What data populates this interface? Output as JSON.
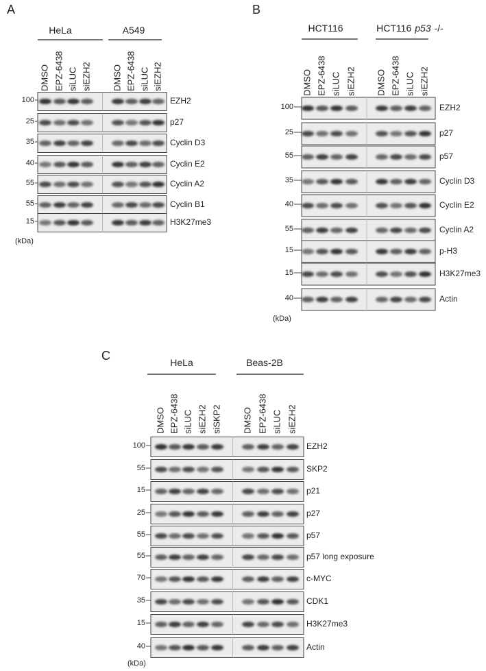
{
  "panels": [
    {
      "label": "A",
      "groups": [
        {
          "name": "HeLa",
          "lanes": [
            "DMSO",
            "EPZ-6438",
            "siLUC",
            "siEZH2"
          ]
        },
        {
          "name": "A549",
          "lanes": [
            "DMSO",
            "EPZ-6438",
            "siLUC",
            "siEZH2"
          ]
        }
      ],
      "rows": [
        {
          "mw": "100",
          "protein": "EZH2"
        },
        {
          "mw": "25",
          "protein": "p27"
        },
        {
          "mw": "35",
          "protein": "Cyclin D3"
        },
        {
          "mw": "40",
          "protein": "Cyclin E2"
        },
        {
          "mw": "55",
          "protein": "Cyclin A2"
        },
        {
          "mw": "55",
          "protein": "Cyclin B1"
        },
        {
          "mw": "15",
          "protein": "H3K27me3"
        }
      ],
      "unit": "(kDa)"
    },
    {
      "label": "B",
      "groups": [
        {
          "name": "HCT116",
          "lanes": [
            "DMSO",
            "EPZ-6438",
            "siLUC",
            "siEZH2"
          ]
        },
        {
          "name": "HCT116",
          "name_italic": "p53",
          "name_suffix": "-/-",
          "lanes": [
            "DMSO",
            "EPZ-6438",
            "siLUC",
            "siEZH2"
          ]
        }
      ],
      "rows": [
        {
          "mw": "100",
          "protein": "EZH2"
        },
        {
          "mw": "25",
          "protein": "p27"
        },
        {
          "mw": "55",
          "protein": "p57"
        },
        {
          "mw": "35",
          "protein": "Cyclin D3"
        },
        {
          "mw": "40",
          "protein": "Cyclin E2"
        },
        {
          "mw": "55",
          "protein": "Cyclin A2"
        },
        {
          "mw": "15",
          "protein": "p-H3"
        },
        {
          "mw": "15",
          "protein": "H3K27me3"
        },
        {
          "mw": "40",
          "protein": "Actin"
        }
      ],
      "unit": "(kDa)"
    },
    {
      "label": "C",
      "groups": [
        {
          "name": "HeLa",
          "lanes": [
            "DMSO",
            "EPZ-6438",
            "siLUC",
            "siEZH2",
            "siSKP2"
          ]
        },
        {
          "name": "Beas-2B",
          "lanes": [
            "DMSO",
            "EPZ-6438",
            "siLUC",
            "siEZH2"
          ]
        }
      ],
      "rows": [
        {
          "mw": "100",
          "protein": "EZH2"
        },
        {
          "mw": "55",
          "protein": "SKP2"
        },
        {
          "mw": "15",
          "protein": "p21"
        },
        {
          "mw": "25",
          "protein": "p27"
        },
        {
          "mw": "55",
          "protein": "p57"
        },
        {
          "mw": "55",
          "protein": "p57 long exposure"
        },
        {
          "mw": "70",
          "protein": "c-MYC"
        },
        {
          "mw": "35",
          "protein": "CDK1"
        },
        {
          "mw": "15",
          "protein": "H3K27me3"
        },
        {
          "mw": "40",
          "protein": "Actin"
        }
      ],
      "unit": "(kDa)"
    }
  ]
}
